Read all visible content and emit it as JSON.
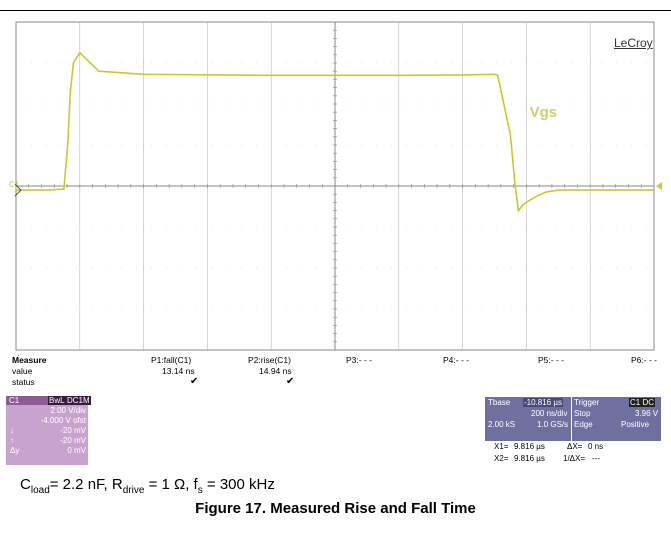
{
  "chart_data": {
    "type": "line",
    "brand": "LeCroy",
    "trace_label": "Vgs",
    "channel_marker": "C1",
    "trace_color": "#c8c832",
    "x_unit": "ns",
    "y_unit": "V",
    "xlim": [
      0,
      2000
    ],
    "ylim": [
      -12,
      4
    ],
    "series": [
      {
        "name": "",
        "x": [
          0,
          100,
          150,
          162,
          170,
          180,
          200,
          260,
          400,
          800,
          1200,
          1400,
          1500,
          1510,
          1550,
          1565,
          1575,
          1590,
          1620,
          1660,
          1700,
          2000
        ],
        "y": [
          -4.2,
          -4.2,
          -4.15,
          -2.0,
          0.5,
          2.0,
          2.5,
          1.6,
          1.45,
          1.4,
          1.4,
          1.42,
          1.45,
          1.4,
          -1.5,
          -4.0,
          -5.2,
          -4.9,
          -4.6,
          -4.3,
          -4.2,
          -4.2
        ]
      }
    ]
  },
  "measure": {
    "title": "Measure",
    "row_value": "value",
    "row_status": "status",
    "columns": [
      {
        "name": "P1:fall(C1)",
        "value": "13.14 ns",
        "status": "✔"
      },
      {
        "name": "P2:rise(C1)",
        "value": "14.94 ns",
        "status": "✔"
      },
      {
        "name": "P3:- - -",
        "value": "",
        "status": ""
      },
      {
        "name": "P4:- - -",
        "value": "",
        "status": ""
      },
      {
        "name": "P5:- - -",
        "value": "",
        "status": ""
      },
      {
        "name": "P6:- - -",
        "value": "",
        "status": ""
      }
    ]
  },
  "channel_box": {
    "name": "C1",
    "badge1": "BwL",
    "badge2": "DC1M",
    "vdiv": "2.00 V/div",
    "offset": "-4.000 V ofst",
    "sym1": "↓",
    "sym2": "↑",
    "sym3": "Δy",
    "val1": "-20 mV",
    "val2": "-20 mV",
    "val3": "0 mV",
    "color": "#c9a3cf"
  },
  "timebase": {
    "tbase_label": "Tbase",
    "tbase_value": "-10.816 µs",
    "ns_div": "200 ns/div",
    "samples": "2.00 kS",
    "rate": "1.0 GS/s",
    "trigger_label": "Trigger",
    "trigger_badge": "C1 DC",
    "mode": "Stop",
    "level": "3.96 V",
    "type": "Edge",
    "slope": "Positive"
  },
  "cursors": {
    "x1_label": "X1=",
    "x1_value": "9.816 µs",
    "dx_label": "ΔX=",
    "dx_value": "0 ns",
    "x2_label": "X2=",
    "x2_value": "9.816 µs",
    "inv_label": "1/ΔX=",
    "inv_value": "---"
  },
  "conditions": {
    "c": "C",
    "c_sub": "load",
    "c_val": "= 2.2 nF, R",
    "r_sub": "drive",
    "r_val": " = 1 Ω, f",
    "f_sub": "s",
    "f_val": " = 300 kHz"
  },
  "caption": "Figure 17. Measured Rise and Fall Time"
}
